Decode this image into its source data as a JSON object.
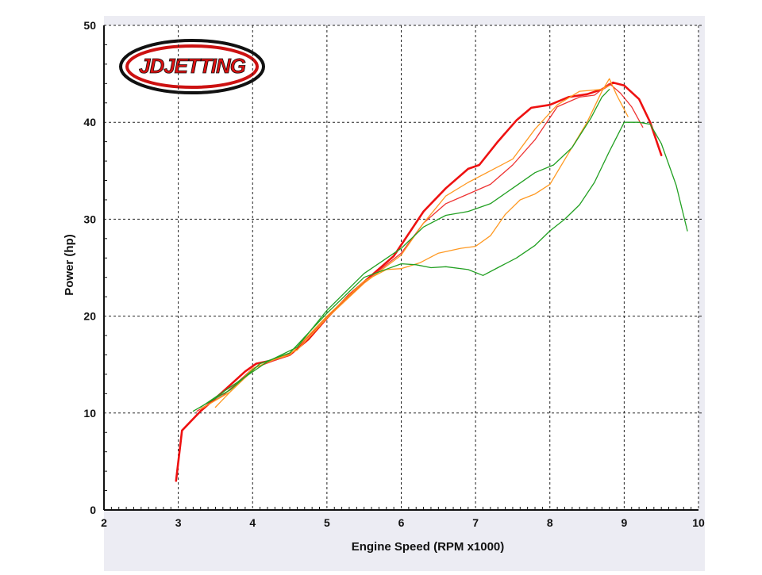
{
  "logo": {
    "text": "JDJETTING"
  },
  "chart_data": {
    "type": "line",
    "xlabel": "Engine Speed (RPM x1000)",
    "ylabel": "Power (hp)",
    "xlim": [
      2,
      10
    ],
    "ylim": [
      0,
      50
    ],
    "xticks": [
      "2",
      "3",
      "4",
      "5",
      "6",
      "7",
      "8",
      "9",
      "10"
    ],
    "yticks": [
      "0",
      "10",
      "20",
      "30",
      "40",
      "50"
    ],
    "grid": true,
    "series": [
      {
        "color": "#ee1111",
        "values": [
          [
            2.97,
            3.0
          ],
          [
            3.05,
            8.2
          ],
          [
            3.3,
            10.2
          ],
          [
            3.6,
            12.2
          ],
          [
            3.9,
            14.3
          ],
          [
            4.05,
            15.1
          ],
          [
            4.3,
            15.5
          ],
          [
            4.5,
            16.0
          ],
          [
            4.75,
            17.6
          ],
          [
            5.0,
            19.8
          ],
          [
            5.3,
            22.2
          ],
          [
            5.6,
            24.2
          ],
          [
            5.9,
            26.2
          ],
          [
            6.1,
            28.5
          ],
          [
            6.3,
            30.8
          ],
          [
            6.6,
            33.2
          ],
          [
            6.9,
            35.2
          ],
          [
            7.05,
            35.6
          ],
          [
            7.3,
            38.0
          ],
          [
            7.55,
            40.2
          ],
          [
            7.75,
            41.5
          ],
          [
            8.0,
            41.8
          ],
          [
            8.25,
            42.6
          ],
          [
            8.5,
            42.9
          ],
          [
            8.7,
            43.4
          ],
          [
            8.85,
            44.1
          ],
          [
            9.0,
            43.8
          ],
          [
            9.2,
            42.4
          ],
          [
            9.35,
            40.0
          ],
          [
            9.5,
            36.6
          ]
        ]
      },
      {
        "color": "#ee3333",
        "values": [
          [
            3.25,
            10.2
          ],
          [
            3.6,
            11.8
          ],
          [
            4.0,
            14.6
          ],
          [
            4.5,
            16.0
          ],
          [
            5.0,
            19.8
          ],
          [
            5.5,
            23.5
          ],
          [
            6.0,
            26.5
          ],
          [
            6.3,
            29.6
          ],
          [
            6.6,
            31.6
          ],
          [
            6.9,
            32.6
          ],
          [
            7.2,
            33.6
          ],
          [
            7.5,
            35.6
          ],
          [
            7.8,
            38.2
          ],
          [
            8.1,
            41.6
          ],
          [
            8.4,
            42.6
          ],
          [
            8.6,
            42.8
          ],
          [
            8.8,
            44.0
          ],
          [
            8.95,
            43.0
          ],
          [
            9.1,
            41.6
          ],
          [
            9.25,
            39.5
          ]
        ]
      },
      {
        "color": "#ff9922",
        "values": [
          [
            3.3,
            10.4
          ],
          [
            3.7,
            12.2
          ],
          [
            4.1,
            15.1
          ],
          [
            4.5,
            16.0
          ],
          [
            5.0,
            20.0
          ],
          [
            5.5,
            23.6
          ],
          [
            5.8,
            24.8
          ],
          [
            6.0,
            24.9
          ],
          [
            6.25,
            25.5
          ],
          [
            6.5,
            26.5
          ],
          [
            6.8,
            27.0
          ],
          [
            7.0,
            27.2
          ],
          [
            7.2,
            28.3
          ],
          [
            7.4,
            30.5
          ],
          [
            7.6,
            32.0
          ],
          [
            7.8,
            32.6
          ],
          [
            8.0,
            33.6
          ],
          [
            8.25,
            36.8
          ],
          [
            8.5,
            40.0
          ],
          [
            8.7,
            43.2
          ],
          [
            8.8,
            44.5
          ],
          [
            8.9,
            42.8
          ],
          [
            9.05,
            40.6
          ]
        ]
      },
      {
        "color": "#ff9922",
        "values": [
          [
            3.5,
            10.6
          ],
          [
            4.0,
            14.6
          ],
          [
            4.6,
            16.5
          ],
          [
            5.0,
            19.8
          ],
          [
            5.5,
            23.4
          ],
          [
            6.0,
            26.3
          ],
          [
            6.3,
            29.6
          ],
          [
            6.6,
            32.4
          ],
          [
            6.9,
            33.8
          ],
          [
            7.2,
            35.0
          ],
          [
            7.5,
            36.2
          ],
          [
            7.8,
            39.3
          ],
          [
            8.1,
            41.8
          ],
          [
            8.4,
            43.2
          ],
          [
            8.7,
            43.4
          ],
          [
            8.8,
            43.8
          ]
        ]
      },
      {
        "color": "#22a022",
        "values": [
          [
            3.2,
            10.2
          ],
          [
            3.7,
            12.4
          ],
          [
            4.1,
            15.1
          ],
          [
            4.5,
            16.2
          ],
          [
            5.0,
            20.3
          ],
          [
            5.5,
            24.0
          ],
          [
            6.0,
            25.4
          ],
          [
            6.2,
            25.3
          ],
          [
            6.4,
            25.0
          ],
          [
            6.6,
            25.1
          ],
          [
            6.9,
            24.8
          ],
          [
            7.1,
            24.2
          ],
          [
            7.3,
            25.0
          ],
          [
            7.55,
            26.0
          ],
          [
            7.8,
            27.3
          ],
          [
            8.0,
            28.8
          ],
          [
            8.2,
            30.0
          ],
          [
            8.4,
            31.5
          ],
          [
            8.6,
            33.8
          ],
          [
            8.8,
            37.0
          ],
          [
            9.0,
            40.0
          ],
          [
            9.2,
            40.0
          ],
          [
            9.35,
            39.8
          ],
          [
            9.5,
            37.8
          ],
          [
            9.7,
            33.5
          ],
          [
            9.85,
            28.8
          ]
        ]
      },
      {
        "color": "#22a022",
        "values": [
          [
            3.3,
            10.6
          ],
          [
            3.8,
            13.2
          ],
          [
            4.2,
            15.3
          ],
          [
            4.6,
            16.8
          ],
          [
            5.0,
            20.6
          ],
          [
            5.5,
            24.4
          ],
          [
            6.0,
            27.0
          ],
          [
            6.3,
            29.2
          ],
          [
            6.6,
            30.4
          ],
          [
            6.9,
            30.8
          ],
          [
            7.2,
            31.6
          ],
          [
            7.5,
            33.2
          ],
          [
            7.8,
            34.8
          ],
          [
            8.05,
            35.6
          ],
          [
            8.3,
            37.4
          ],
          [
            8.55,
            40.4
          ],
          [
            8.7,
            42.6
          ],
          [
            8.8,
            43.4
          ]
        ]
      }
    ]
  }
}
